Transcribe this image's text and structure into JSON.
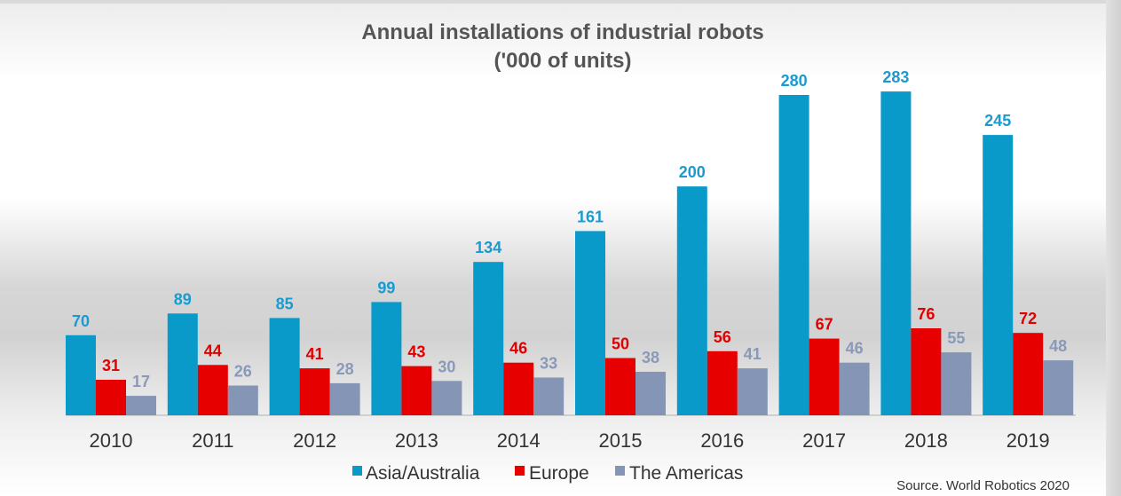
{
  "chart_data": {
    "type": "bar",
    "title": "Annual installations of industrial robots",
    "subtitle": "('000 of units)",
    "categories": [
      "2010",
      "2011",
      "2012",
      "2013",
      "2014",
      "2015",
      "2016",
      "2017",
      "2018",
      "2019"
    ],
    "series": [
      {
        "name": "Asia/Australia",
        "color": "#0a9ac9",
        "label_color": "#1a9bd0",
        "values": [
          70,
          89,
          85,
          99,
          134,
          161,
          200,
          280,
          283,
          245
        ]
      },
      {
        "name": "Europe",
        "color": "#e60000",
        "label_color": "#e00000",
        "values": [
          31,
          44,
          41,
          43,
          46,
          50,
          56,
          67,
          76,
          72
        ]
      },
      {
        "name": "The Americas",
        "color": "#8595b5",
        "label_color": "#8a99b8",
        "values": [
          17,
          26,
          28,
          30,
          33,
          38,
          41,
          46,
          55,
          48
        ]
      }
    ],
    "ylim": [
      0,
      280
    ],
    "xlabel": "",
    "ylabel": "",
    "legend_position": "bottom",
    "grid": false,
    "source": "Source. World Robotics 2020"
  }
}
